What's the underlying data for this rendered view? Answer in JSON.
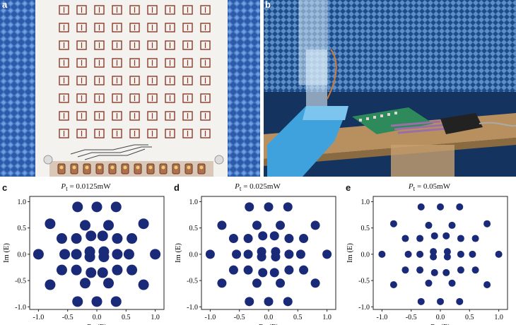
{
  "photos": [
    {
      "label": "a"
    },
    {
      "label": "b"
    }
  ],
  "colors": {
    "marker": "#1a2a78",
    "absorber": "#2d5aa8",
    "board": "#f4f2ee",
    "cell": "#8a3a2a",
    "pcb": "#2e8a5a"
  },
  "chart_data": [
    {
      "type": "scatter",
      "label": "c",
      "title_prefix": "P",
      "title_sub": "t",
      "title_value": " = 0.0125mW",
      "xlabel": "Re (E)",
      "ylabel": "Im (E)",
      "xlim": [
        -1.15,
        1.15
      ],
      "ylim": [
        -1.05,
        1.1
      ],
      "xticks": [
        "-1.0",
        "-0.5",
        "0.0",
        "0.5",
        "1.0"
      ],
      "xtick_values": [
        -1.0,
        -0.5,
        0.0,
        0.5,
        1.0
      ],
      "yticks": [
        "1.0",
        "0.5",
        "0.0",
        "-0.5",
        "-1.0"
      ],
      "ytick_values": [
        1.0,
        0.5,
        0.0,
        -0.5,
        -1.0
      ],
      "points": [
        [
          -1.0,
          0
        ],
        [
          1.0,
          0
        ],
        [
          0,
          0.9
        ],
        [
          0.33,
          0.9
        ],
        [
          -0.33,
          0.9
        ],
        [
          0,
          -0.9
        ],
        [
          0.33,
          -0.9
        ],
        [
          -0.33,
          -0.9
        ],
        [
          -0.8,
          0.58
        ],
        [
          0.8,
          0.58
        ],
        [
          -0.8,
          -0.58
        ],
        [
          0.8,
          -0.58
        ],
        [
          -0.6,
          0.3
        ],
        [
          0.6,
          0.3
        ],
        [
          -0.6,
          -0.3
        ],
        [
          0.6,
          -0.3
        ],
        [
          -0.35,
          0.3
        ],
        [
          0.35,
          0.3
        ],
        [
          -0.35,
          -0.3
        ],
        [
          0.35,
          -0.3
        ],
        [
          -0.2,
          0.55
        ],
        [
          0.2,
          0.55
        ],
        [
          -0.2,
          -0.55
        ],
        [
          0.2,
          -0.55
        ],
        [
          -0.1,
          0.35
        ],
        [
          0.1,
          0.35
        ],
        [
          -0.1,
          -0.35
        ],
        [
          0.1,
          -0.35
        ],
        [
          -0.35,
          0
        ],
        [
          0.35,
          0
        ],
        [
          -0.55,
          0
        ],
        [
          0.55,
          0
        ],
        [
          -0.12,
          0.05
        ],
        [
          0.12,
          0.05
        ],
        [
          -0.12,
          -0.05
        ],
        [
          0.12,
          -0.05
        ]
      ],
      "marker_size": 7.5
    },
    {
      "type": "scatter",
      "label": "d",
      "title_prefix": "P",
      "title_sub": "t",
      "title_value": " = 0.025mW",
      "xlabel": "Re (E)",
      "ylabel": "Im (E)",
      "xlim": [
        -1.15,
        1.15
      ],
      "ylim": [
        -1.05,
        1.1
      ],
      "xticks": [
        "-1.0",
        "-0.5",
        "0.0",
        "0.5",
        "1.0"
      ],
      "xtick_values": [
        -1.0,
        -0.5,
        0.0,
        0.5,
        1.0
      ],
      "yticks": [
        "1.0",
        "0.5",
        "0.0",
        "-0.5",
        "-1.0"
      ],
      "ytick_values": [
        1.0,
        0.5,
        0.0,
        -0.5,
        -1.0
      ],
      "points": [
        [
          -1.0,
          0
        ],
        [
          1.0,
          0
        ],
        [
          0,
          0.9
        ],
        [
          0.33,
          0.9
        ],
        [
          -0.33,
          0.9
        ],
        [
          0,
          -0.9
        ],
        [
          0.33,
          -0.9
        ],
        [
          -0.33,
          -0.9
        ],
        [
          -0.8,
          0.55
        ],
        [
          0.8,
          0.55
        ],
        [
          -0.8,
          -0.55
        ],
        [
          0.8,
          -0.55
        ],
        [
          -0.6,
          0.3
        ],
        [
          0.6,
          0.3
        ],
        [
          -0.6,
          -0.3
        ],
        [
          0.6,
          -0.3
        ],
        [
          -0.35,
          0.3
        ],
        [
          0.35,
          0.3
        ],
        [
          -0.35,
          -0.3
        ],
        [
          0.35,
          -0.3
        ],
        [
          -0.2,
          0.55
        ],
        [
          0.2,
          0.55
        ],
        [
          -0.2,
          -0.55
        ],
        [
          0.2,
          -0.55
        ],
        [
          -0.1,
          0.35
        ],
        [
          0.1,
          0.35
        ],
        [
          -0.1,
          -0.35
        ],
        [
          0.1,
          -0.35
        ],
        [
          -0.35,
          0
        ],
        [
          0.35,
          0
        ],
        [
          -0.55,
          0
        ],
        [
          0.55,
          0
        ],
        [
          -0.12,
          0.05
        ],
        [
          0.12,
          0.05
        ],
        [
          -0.12,
          -0.05
        ],
        [
          0.12,
          -0.05
        ]
      ],
      "marker_size": 6.5
    },
    {
      "type": "scatter",
      "label": "e",
      "title_prefix": "P",
      "title_sub": "t",
      "title_value": " = 0.05mW",
      "xlabel": "Re (E)",
      "ylabel": "Im (E)",
      "xlim": [
        -1.15,
        1.15
      ],
      "ylim": [
        -1.05,
        1.1
      ],
      "xticks": [
        "-1.0",
        "-0.5",
        "0.0",
        "0.5",
        "1.0"
      ],
      "xtick_values": [
        -1.0,
        -0.5,
        0.0,
        0.5,
        1.0
      ],
      "yticks": [
        "1.0",
        "0.5",
        "0.0",
        "-0.5",
        "-1.0"
      ],
      "ytick_values": [
        1.0,
        0.5,
        0.0,
        -0.5,
        -1.0
      ],
      "points": [
        [
          -1.0,
          0
        ],
        [
          1.0,
          0
        ],
        [
          0,
          0.9
        ],
        [
          0.33,
          0.9
        ],
        [
          -0.33,
          0.9
        ],
        [
          0,
          -0.9
        ],
        [
          0.33,
          -0.9
        ],
        [
          -0.33,
          -0.9
        ],
        [
          -0.8,
          0.58
        ],
        [
          0.8,
          0.58
        ],
        [
          -0.8,
          -0.58
        ],
        [
          0.8,
          -0.58
        ],
        [
          -0.6,
          0.3
        ],
        [
          0.6,
          0.3
        ],
        [
          -0.6,
          -0.3
        ],
        [
          0.6,
          -0.3
        ],
        [
          -0.35,
          0.3
        ],
        [
          0.35,
          0.3
        ],
        [
          -0.35,
          -0.3
        ],
        [
          0.35,
          -0.3
        ],
        [
          -0.2,
          0.55
        ],
        [
          0.2,
          0.55
        ],
        [
          -0.2,
          -0.55
        ],
        [
          0.2,
          -0.55
        ],
        [
          -0.1,
          0.35
        ],
        [
          0.1,
          0.35
        ],
        [
          -0.1,
          -0.35
        ],
        [
          0.1,
          -0.35
        ],
        [
          -0.35,
          0
        ],
        [
          0.35,
          0
        ],
        [
          -0.55,
          0
        ],
        [
          0.55,
          0
        ],
        [
          -0.12,
          0.05
        ],
        [
          0.12,
          0.05
        ],
        [
          -0.12,
          -0.05
        ],
        [
          0.12,
          -0.05
        ]
      ],
      "marker_size": 5
    }
  ]
}
